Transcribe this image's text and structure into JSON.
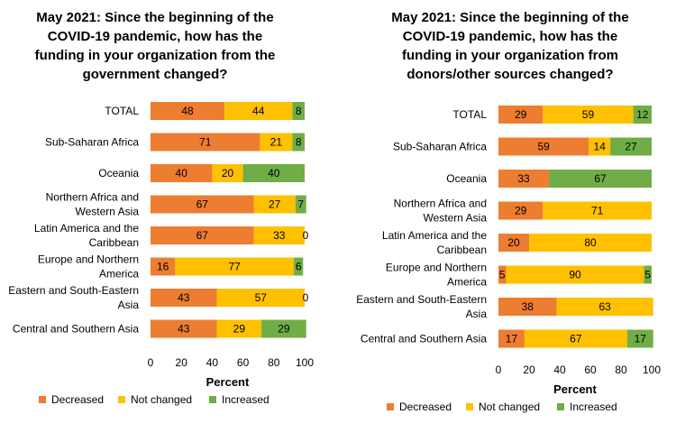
{
  "colors": {
    "decreased": "#ED7D31",
    "not_changed": "#FFC000",
    "increased": "#70AD47"
  },
  "chart_data": [
    {
      "type": "bar",
      "orientation": "horizontal-stacked",
      "title": "May 2021: Since the beginning of the\nCOVID-19 pandemic, how has the\nfunding in your organization from the\ngovernment changed?",
      "categories": [
        "TOTAL",
        "Sub-Saharan Africa",
        "Oceania",
        "Northern Africa and\nWestern Asia",
        "Latin America and the\nCaribbean",
        "Europe and Northern\nAmerica",
        "Eastern and South-Eastern\nAsia",
        "Central and Southern Asia"
      ],
      "series": [
        {
          "name": "Decreased",
          "values": [
            48,
            71,
            40,
            67,
            67,
            16,
            43,
            43
          ]
        },
        {
          "name": "Not changed",
          "values": [
            44,
            21,
            20,
            27,
            33,
            77,
            57,
            29
          ]
        },
        {
          "name": "Increased",
          "values": [
            8,
            8,
            40,
            7,
            0,
            6,
            0,
            29
          ]
        }
      ],
      "xlabel": "Percent",
      "xlim": [
        0,
        100
      ],
      "xticks": [
        "0",
        "20",
        "40",
        "60",
        "80",
        "100"
      ],
      "legend": "bottom",
      "grid": false
    },
    {
      "type": "bar",
      "orientation": "horizontal-stacked",
      "title": "May 2021: Since the beginning of the\nCOVID-19 pandemic, how has the\nfunding in your organization from\ndonors/other sources changed?",
      "categories": [
        "TOTAL",
        "Sub-Saharan Africa",
        "Oceania",
        "Northern Africa and\nWestern Asia",
        "Latin America and the\nCaribbean",
        "Europe and Northern\nAmerica",
        "Eastern and South-Eastern\nAsia",
        "Central and Southern Asia"
      ],
      "series": [
        {
          "name": "Decreased",
          "values": [
            29,
            59,
            33,
            29,
            20,
            5,
            38,
            17
          ]
        },
        {
          "name": "Not changed",
          "values": [
            59,
            14,
            0,
            71,
            80,
            90,
            63,
            67
          ]
        },
        {
          "name": "Increased",
          "values": [
            12,
            27,
            67,
            0,
            0,
            5,
            0,
            17
          ]
        }
      ],
      "xlabel": "Percent",
      "xlim": [
        0,
        100
      ],
      "xticks": [
        "0",
        "20",
        "40",
        "60",
        "80",
        "100"
      ],
      "legend": "bottom",
      "grid": false
    }
  ]
}
